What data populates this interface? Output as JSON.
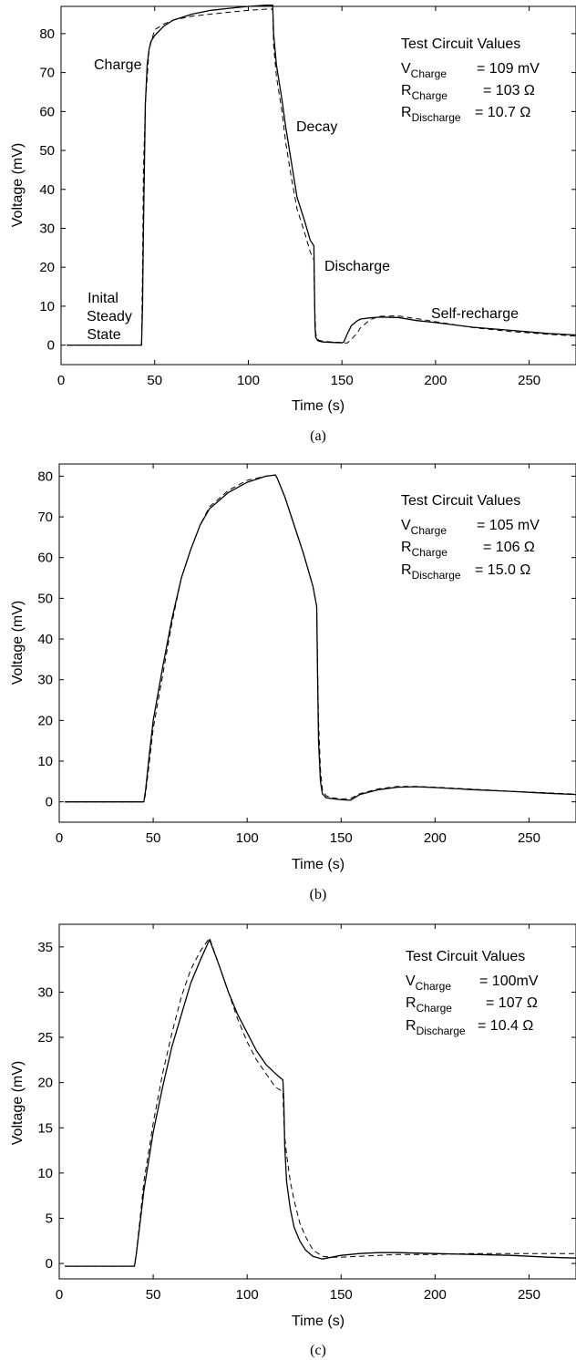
{
  "chart_data": [
    {
      "type": "line",
      "panel_label": "(a)",
      "xlabel": "Time (s)",
      "ylabel": "Voltage (mV)",
      "xlim": [
        0,
        275
      ],
      "ylim": [
        -5,
        87
      ],
      "xticks": [
        0,
        50,
        100,
        150,
        200,
        250
      ],
      "yticks": [
        0,
        10,
        20,
        30,
        40,
        50,
        60,
        70,
        80
      ],
      "circuit_values": {
        "heading": "Test Circuit Values",
        "rows": [
          {
            "sym": "V",
            "sub": "Charge",
            "value": "= 109 mV"
          },
          {
            "sym": "R",
            "sub": "Charge",
            "value": "= 103 Ω"
          },
          {
            "sym": "R",
            "sub": "Discharge",
            "value": "= 10.7 Ω"
          }
        ]
      },
      "annotations": [
        "Charge",
        "Decay",
        "Discharge",
        "Self-recharge",
        "Inital",
        "Steady",
        "State"
      ],
      "series": [
        {
          "style": "solid",
          "x": [
            3,
            43,
            43.5,
            44,
            45,
            46,
            47,
            48,
            50,
            55,
            60,
            70,
            80,
            90,
            100,
            110,
            113,
            113.5,
            115,
            118,
            120,
            123,
            126,
            130,
            133,
            135,
            135.3,
            135.6,
            136,
            137,
            138,
            140,
            145,
            150,
            151,
            153,
            155,
            158,
            160,
            165,
            170,
            180,
            190,
            200,
            220,
            240,
            260,
            275
          ],
          "y": [
            0,
            0,
            10,
            30,
            62,
            72,
            76,
            78,
            79.5,
            82,
            83.5,
            85,
            86,
            86.5,
            87,
            87.3,
            87.3,
            80,
            72,
            63,
            56,
            47,
            38,
            32,
            27,
            25.5,
            15,
            5,
            2,
            1.2,
            1,
            0.8,
            0.7,
            0.6,
            0.8,
            3,
            5,
            6.2,
            6.7,
            7,
            7.2,
            7.1,
            6.3,
            5.8,
            4.6,
            3.8,
            3,
            2.6
          ]
        },
        {
          "style": "dashed",
          "x": [
            3,
            43,
            43.5,
            44,
            45,
            47,
            50,
            55,
            60,
            70,
            80,
            90,
            100,
            110,
            113,
            113.5,
            115,
            118,
            120,
            123,
            126,
            130,
            133,
            135,
            135.3,
            136,
            137,
            138,
            140,
            145,
            150,
            151,
            153,
            155,
            158,
            160,
            165,
            170,
            180,
            190,
            200,
            220,
            240,
            260,
            275
          ],
          "y": [
            0,
            0,
            20,
            45,
            62,
            76,
            81,
            82.5,
            83.5,
            84.5,
            85,
            85.5,
            86,
            86.3,
            86.3,
            77,
            69,
            60,
            52,
            43,
            35,
            29,
            24,
            22,
            12,
            3,
            1.5,
            1.2,
            1,
            0.8,
            0.7,
            0.5,
            0.6,
            1.5,
            3,
            4.5,
            6.5,
            7.4,
            7.5,
            6.8,
            6,
            4.5,
            3.5,
            2.8,
            2.3
          ]
        }
      ]
    },
    {
      "type": "line",
      "panel_label": "(b)",
      "xlabel": "Time (s)",
      "ylabel": "Voltage (mV)",
      "xlim": [
        0,
        275
      ],
      "ylim": [
        -5,
        83
      ],
      "xticks": [
        0,
        50,
        100,
        150,
        200,
        250
      ],
      "yticks": [
        0,
        10,
        20,
        30,
        40,
        50,
        60,
        70,
        80
      ],
      "circuit_values": {
        "heading": "Test Circuit Values",
        "rows": [
          {
            "sym": "V",
            "sub": "Charge",
            "value": "= 105 mV"
          },
          {
            "sym": "R",
            "sub": "Charge",
            "value": "= 106 Ω"
          },
          {
            "sym": "R",
            "sub": "Discharge",
            "value": "= 15.0 Ω"
          }
        ]
      },
      "annotations": [],
      "series": [
        {
          "style": "solid",
          "x": [
            3,
            45,
            46,
            48,
            50,
            55,
            60,
            65,
            70,
            75,
            80,
            90,
            100,
            110,
            115,
            116,
            120,
            125,
            130,
            135,
            137,
            137.5,
            138,
            139,
            140,
            142,
            145,
            150,
            155,
            160,
            170,
            180,
            190,
            200,
            220,
            240,
            260,
            275
          ],
          "y": [
            0,
            0,
            3,
            12,
            20,
            33,
            45,
            55,
            62,
            68,
            72,
            76,
            78.5,
            80,
            80.3,
            79.5,
            75,
            68,
            61,
            53,
            48,
            30,
            15,
            5,
            2,
            1,
            0.8,
            0.5,
            0.4,
            1.8,
            3,
            3.6,
            3.7,
            3.5,
            3,
            2.6,
            2.1,
            1.8
          ]
        },
        {
          "style": "dashed",
          "x": [
            3,
            45,
            46,
            48,
            50,
            55,
            60,
            65,
            70,
            75,
            80,
            90,
            100,
            110,
            115,
            116,
            120,
            125,
            130,
            135,
            137,
            137.5,
            138,
            139,
            140,
            142,
            145,
            150,
            155,
            160,
            170,
            180,
            190,
            200,
            220,
            240,
            260,
            275
          ],
          "y": [
            0,
            0,
            2,
            10,
            18,
            31,
            44,
            55,
            62,
            68,
            72.5,
            76.5,
            79,
            80,
            80.3,
            79.5,
            75,
            68,
            61,
            53,
            48,
            33,
            20,
            8,
            3,
            1.5,
            1,
            0.7,
            0.8,
            2,
            3.2,
            3.8,
            3.8,
            3.6,
            3.1,
            2.6,
            2.2,
            1.9
          ]
        }
      ]
    },
    {
      "type": "line",
      "panel_label": "(c)",
      "xlabel": "Time (s)",
      "ylabel": "Voltage (mV)",
      "xlim": [
        0,
        275
      ],
      "ylim": [
        -1.7,
        37.5
      ],
      "xticks": [
        0,
        50,
        100,
        150,
        200,
        250
      ],
      "yticks": [
        0,
        5,
        10,
        15,
        20,
        25,
        30,
        35
      ],
      "circuit_values": {
        "heading": "Test Circuit Values",
        "rows": [
          {
            "sym": "V",
            "sub": "Charge",
            "value": "= 100mV"
          },
          {
            "sym": "R",
            "sub": "Charge",
            "value": "= 107 Ω"
          },
          {
            "sym": "R",
            "sub": "Discharge",
            "value": "= 10.4 Ω"
          }
        ]
      },
      "annotations": [],
      "series": [
        {
          "style": "solid",
          "x": [
            3,
            40,
            41,
            43,
            45,
            50,
            55,
            60,
            65,
            70,
            75,
            80,
            85,
            90,
            95,
            100,
            105,
            110,
            115,
            119,
            119.5,
            120,
            121,
            123,
            125,
            128,
            131,
            135,
            140,
            145,
            150,
            160,
            170,
            180,
            200,
            220,
            240,
            260,
            275
          ],
          "y": [
            -0.3,
            -0.3,
            1,
            4.5,
            8,
            14.5,
            19.5,
            24,
            27.5,
            31,
            33.5,
            35.8,
            33,
            30,
            27.5,
            25.5,
            23.5,
            22,
            21,
            20.3,
            18,
            13,
            9,
            6,
            4,
            2.5,
            1.5,
            0.8,
            0.5,
            0.7,
            0.9,
            1.1,
            1.2,
            1.2,
            1.1,
            1,
            0.9,
            0.7,
            0.6
          ]
        },
        {
          "style": "dashed",
          "x": [
            3,
            40,
            41,
            43,
            45,
            50,
            55,
            60,
            65,
            70,
            75,
            80,
            85,
            90,
            95,
            100,
            105,
            110,
            115,
            119,
            119.5,
            120,
            121,
            123,
            125,
            128,
            131,
            135,
            140,
            145,
            150,
            160,
            170,
            180,
            200,
            220,
            240,
            260,
            275
          ],
          "y": [
            -0.3,
            -0.3,
            1,
            5,
            9,
            15.5,
            21,
            25.5,
            29.5,
            32.5,
            34.5,
            36,
            33,
            30,
            27,
            24.5,
            22.5,
            21,
            19.5,
            19,
            16,
            14,
            12,
            9,
            7,
            4.5,
            3,
            1.5,
            0.8,
            0.7,
            0.7,
            0.8,
            0.9,
            1,
            1,
            1.1,
            1.1,
            1.1,
            1.1
          ]
        }
      ]
    }
  ]
}
